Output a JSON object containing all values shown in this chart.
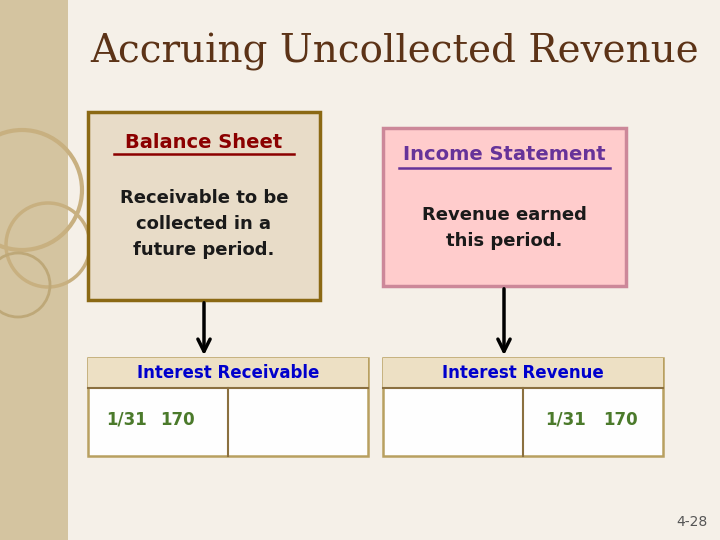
{
  "title": "Accruing Uncollected Revenue",
  "title_color": "#5C3317",
  "title_fontsize": 28,
  "bg_color": "#F5F0E8",
  "left_panel_color": "#E8DCC8",
  "right_panel_color": "#FFCCCC",
  "left_border_color": "#8B6914",
  "right_border_color": "#CC8899",
  "left_box": {
    "header": "Balance Sheet",
    "header_color": "#8B0000",
    "body": "Receivable to be\ncollected in a\nfuture period.",
    "body_color": "#1A1A1A"
  },
  "right_box": {
    "header": "Income Statement",
    "header_color": "#663399",
    "body": "Revenue earned\nthis period.",
    "body_color": "#1A1A1A"
  },
  "ledger_left": {
    "header": "Interest Receivable",
    "header_color": "#0000CC",
    "debit_label": "1/31",
    "debit_value": "170",
    "label_color": "#4B7A2B"
  },
  "ledger_right": {
    "header": "Interest Revenue",
    "header_color": "#0000CC",
    "credit_label": "1/31",
    "credit_value": "170",
    "label_color": "#4B7A2B"
  },
  "sidebar_color": "#D4C4A0",
  "page_number": "4-28"
}
